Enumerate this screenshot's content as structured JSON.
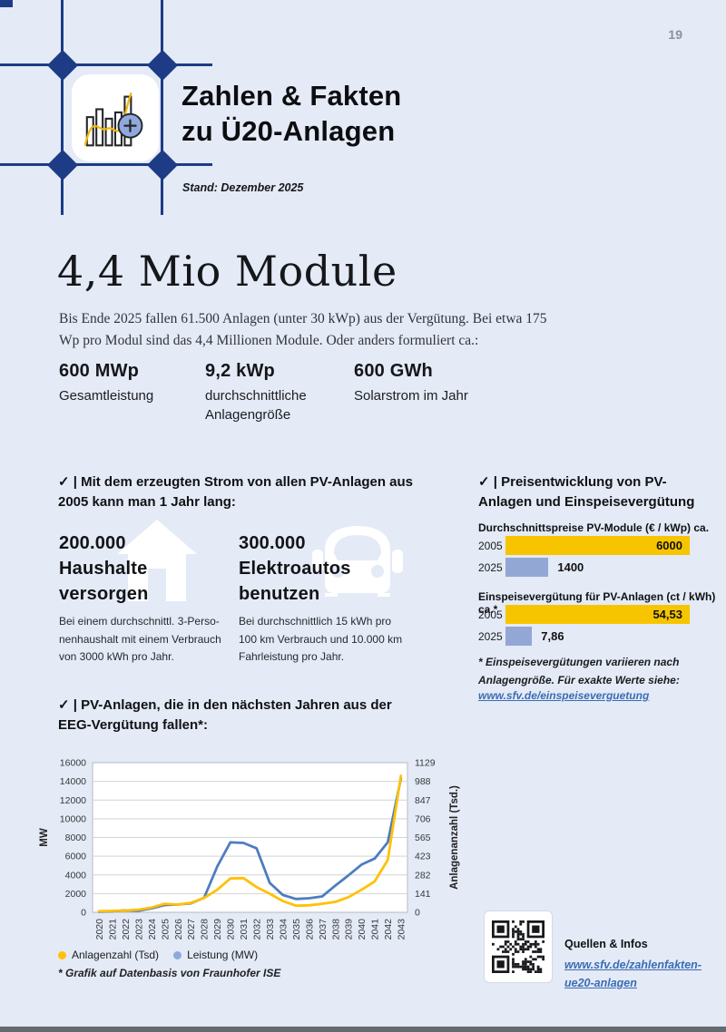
{
  "page": {
    "number": "19",
    "background": "#e4eaf6"
  },
  "colors": {
    "navy": "#1d3c85",
    "accent_yellow": "#f6c500",
    "bar_blue": "#92a7d3",
    "line_blue": "#4e7dbe",
    "line_yellow": "#ffc104",
    "legend_blue_dot": "#8ea9db",
    "link_blue": "#3a6db4",
    "page_bg": "#e4eaf6"
  },
  "header": {
    "title_line1": "Zahlen & Fakten",
    "title_line2": "zu Ü20-Anlagen",
    "stand": "Stand: Dezember 2025",
    "logo_icon": "bar-chart-plus-icon"
  },
  "hero": {
    "headline": "4,4 Mio Module",
    "paragraph": "Bis Ende 2025 fallen 61.500 Anlagen (unter 30 kWp) aus der Vergütung. Bei etwa 175 Wp pro Modul sind das 4,4 Millionen Module. Oder anders formuliert ca.:"
  },
  "stats": [
    {
      "value": "600 MWp",
      "label": "Gesamtleistung"
    },
    {
      "value": "9,2 kWp",
      "label": "durchschnittliche Anlagengröße"
    },
    {
      "value": "600 GWh",
      "label": "Solarstrom im Jahr"
    }
  ],
  "usage_section": {
    "check": "✓ |",
    "heading": "Mit dem erzeugten Strom von allen PV-Anlagen aus\n2005 kann man 1 Jahr lang:",
    "items": [
      {
        "icon": "house-icon",
        "title": "200.000\nHaushalte\nversorgen",
        "caption": "Bei einem durchschnittl. 3-Perso-\nnenhaushalt mit einem Verbrauch\nvon 3000 kWh pro Jahr."
      },
      {
        "icon": "car-icon",
        "title": "300.000\nElektroautos\nbenutzen",
        "caption": "Bei durchschnittlich 15 kWh pro\n100 km Verbrauch und 10.000 km\nFahrleistung pro Jahr."
      }
    ]
  },
  "price_section": {
    "check": "✓ |",
    "heading": "Preisentwicklung von PV-\nAnlagen und Einspeisevergütung",
    "charts": [
      {
        "title": "Durchschnittspreise PV-Module (€ / kWp) ca.",
        "max": 6000,
        "rows": [
          {
            "year": "2005",
            "value": 6000,
            "label": "6000",
            "color": "yellow",
            "label_inside": true
          },
          {
            "year": "2025",
            "value": 1400,
            "label": "1400",
            "color": "blue",
            "label_inside": false
          }
        ]
      },
      {
        "title": "Einspeisevergütung für PV-Anlagen (ct / kWh) ca.*",
        "max": 54.53,
        "rows": [
          {
            "year": "2005",
            "value": 54.53,
            "label": "54,53",
            "color": "yellow",
            "label_inside": true
          },
          {
            "year": "2025",
            "value": 7.86,
            "label": "7,86",
            "color": "blue",
            "label_inside": false
          }
        ]
      }
    ],
    "footnote": "* Einspeisevergütungen variieren nach\nAnlagengröße. Für exakte Werte siehe:",
    "link": "www.sfv.de/einspeiseverguetung"
  },
  "chart_section": {
    "check": "✓ |",
    "heading": "PV-Anlagen, die in den nächsten Jahren aus der\nEEG-Vergütung fallen*:",
    "legend": [
      {
        "label": "Anlagenzahl (Tsd)",
        "color": "#ffc104"
      },
      {
        "label": "Leistung (MW)",
        "color": "#8ea9db"
      }
    ],
    "footnote": "* Grafik auf Datenbasis von Fraunhofer ISE"
  },
  "chart_data": {
    "type": "line",
    "x": [
      2020,
      2021,
      2022,
      2023,
      2024,
      2025,
      2026,
      2027,
      2028,
      2029,
      2030,
      2031,
      2032,
      2033,
      2034,
      2035,
      2036,
      2037,
      2038,
      2039,
      2040,
      2041,
      2042,
      2043
    ],
    "series": [
      {
        "name": "Leistung (MW)",
        "axis": "left",
        "color": "#4e7dbe",
        "values": [
          60,
          120,
          200,
          160,
          430,
          780,
          830,
          960,
          1550,
          4900,
          7480,
          7420,
          6850,
          3150,
          1850,
          1430,
          1500,
          1700,
          2850,
          3950,
          5100,
          5750,
          7500,
          14300
        ]
      },
      {
        "name": "Anlagenzahl (Tsd)",
        "axis": "right",
        "color": "#ffc104",
        "values": [
          8,
          10,
          14,
          20,
          36,
          64,
          58,
          72,
          108,
          170,
          255,
          258,
          190,
          140,
          85,
          50,
          53,
          64,
          79,
          114,
          170,
          233,
          395,
          1030
        ]
      }
    ],
    "left_axis": {
      "label": "MW",
      "min": 0,
      "max": 16000,
      "ticks": [
        0,
        2000,
        4000,
        6000,
        8000,
        10000,
        12000,
        14000,
        16000
      ]
    },
    "right_axis": {
      "label": "Anlagenanzahl (Tsd.)",
      "min": 0,
      "max": 1129,
      "ticks": [
        0,
        141,
        282,
        423,
        565,
        706,
        847,
        988,
        1129
      ]
    },
    "grid": true,
    "legend_position": "bottom-left"
  },
  "sources": {
    "qr": "qr-code",
    "heading": "Quellen & Infos",
    "link_line1": "www.sfv.de/zahlenfakten-",
    "link_line2": "ue20-anlagen"
  }
}
